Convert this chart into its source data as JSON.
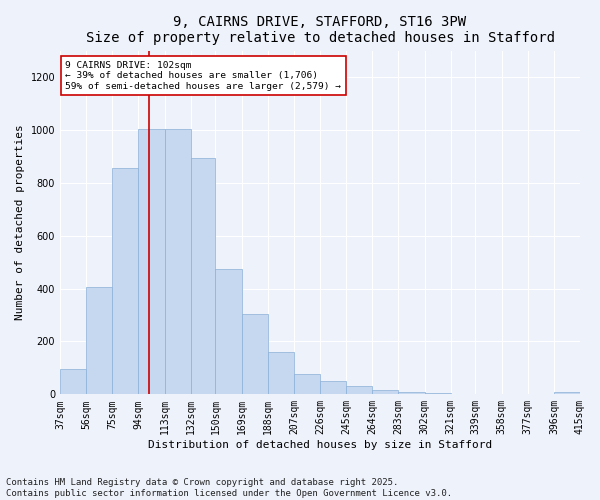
{
  "title": "9, CAIRNS DRIVE, STAFFORD, ST16 3PW",
  "subtitle": "Size of property relative to detached houses in Stafford",
  "xlabel": "Distribution of detached houses by size in Stafford",
  "ylabel": "Number of detached properties",
  "bin_edges": [
    37,
    56,
    75,
    94,
    113,
    132,
    150,
    169,
    188,
    207,
    226,
    245,
    264,
    283,
    302,
    321,
    339,
    358,
    377,
    396,
    415
  ],
  "bar_values": [
    95,
    405,
    855,
    1005,
    1005,
    895,
    475,
    305,
    160,
    75,
    50,
    30,
    18,
    10,
    5,
    0,
    0,
    0,
    0,
    10
  ],
  "bar_color": "#c5d8f0",
  "bar_edge_color": "#8ab0d8",
  "vline_x": 102,
  "vline_color": "#cc0000",
  "annotation_text": "9 CAIRNS DRIVE: 102sqm\n← 39% of detached houses are smaller (1,706)\n59% of semi-detached houses are larger (2,579) →",
  "annotation_box_color": "#ffffff",
  "annotation_box_edge": "#cc0000",
  "ylim": [
    0,
    1300
  ],
  "yticks": [
    0,
    200,
    400,
    600,
    800,
    1000,
    1200
  ],
  "xlim": [
    37,
    415
  ],
  "background_color": "#eef2fb",
  "grid_color": "#ffffff",
  "footer": "Contains HM Land Registry data © Crown copyright and database right 2025.\nContains public sector information licensed under the Open Government Licence v3.0.",
  "title_fontsize": 10,
  "axis_label_fontsize": 8,
  "tick_fontsize": 7,
  "footer_fontsize": 6.5,
  "tick_labels": [
    "37sqm",
    "56sqm",
    "75sqm",
    "94sqm",
    "113sqm",
    "132sqm",
    "150sqm",
    "169sqm",
    "188sqm",
    "207sqm",
    "226sqm",
    "245sqm",
    "264sqm",
    "283sqm",
    "302sqm",
    "321sqm",
    "339sqm",
    "358sqm",
    "377sqm",
    "396sqm",
    "415sqm"
  ]
}
